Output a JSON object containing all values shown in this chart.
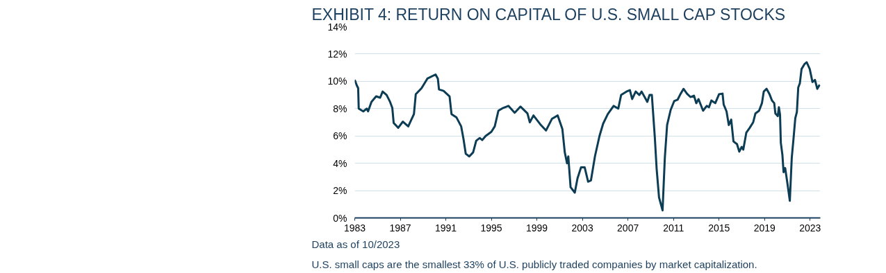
{
  "chart_data": {
    "type": "line",
    "title": "EXHIBIT 4: RETURN ON CAPITAL OF U.S. SMALL CAP STOCKS",
    "annotations": [
      "Data as of 10/2023",
      "U.S. small caps are the smallest 33% of U.S. publicly traded companies by market capitalization."
    ],
    "x": [
      1983.0,
      1983.18,
      1983.3,
      1983.35,
      1983.75,
      1984.06,
      1984.17,
      1984.47,
      1984.88,
      1985.23,
      1985.45,
      1985.8,
      1986.1,
      1986.3,
      1986.42,
      1986.82,
      1987.23,
      1987.7,
      1988.2,
      1988.36,
      1988.87,
      1989.38,
      1990.1,
      1990.3,
      1990.4,
      1990.8,
      1991.33,
      1991.5,
      1991.94,
      1992.35,
      1992.55,
      1992.75,
      1993.06,
      1993.4,
      1993.67,
      1993.98,
      1994.2,
      1994.5,
      1995.0,
      1995.3,
      1995.62,
      1996.03,
      1996.5,
      1997.05,
      1997.56,
      1998.17,
      1998.38,
      1998.7,
      1999.3,
      1999.8,
      2000.32,
      2000.83,
      2001.24,
      2001.45,
      2001.65,
      2001.76,
      2001.96,
      2002.33,
      2002.57,
      2002.88,
      2003.2,
      2003.5,
      2003.75,
      2004.1,
      2004.5,
      2004.82,
      2005.23,
      2005.74,
      2006.15,
      2006.4,
      2006.87,
      2007.17,
      2007.37,
      2007.68,
      2008.0,
      2008.2,
      2008.7,
      2008.9,
      2009.1,
      2009.36,
      2009.52,
      2009.73,
      2010.04,
      2010.24,
      2010.44,
      2010.75,
      2011.06,
      2011.36,
      2011.57,
      2011.88,
      2012.18,
      2012.49,
      2012.8,
      2013.0,
      2013.2,
      2013.6,
      2013.92,
      2014.12,
      2014.33,
      2014.67,
      2015.0,
      2015.31,
      2015.41,
      2015.66,
      2015.86,
      2016.07,
      2016.27,
      2016.58,
      2016.78,
      2016.99,
      2017.13,
      2017.4,
      2017.7,
      2018.0,
      2018.2,
      2018.52,
      2018.77,
      2018.93,
      2019.18,
      2019.44,
      2019.65,
      2019.85,
      2019.95,
      2020.16,
      2020.26,
      2020.36,
      2020.43,
      2020.57,
      2020.67,
      2020.81,
      2020.98,
      2021.22,
      2021.39,
      2021.55,
      2021.7,
      2021.84,
      2021.96,
      2022.1,
      2022.25,
      2022.5,
      2022.7,
      2022.97,
      2023.21,
      2023.43,
      2023.63,
      2023.84
    ],
    "series": [
      {
        "color": "#0d3c55",
        "values": [
          10.1,
          9.7,
          9.5,
          8.0,
          7.8,
          8.0,
          7.8,
          8.5,
          8.9,
          8.8,
          9.25,
          9.0,
          8.5,
          8.05,
          6.95,
          6.6,
          7.05,
          6.7,
          7.6,
          9.05,
          9.5,
          10.2,
          10.5,
          10.2,
          9.4,
          9.3,
          8.9,
          7.6,
          7.35,
          6.7,
          5.8,
          4.7,
          4.5,
          4.8,
          5.65,
          5.85,
          5.7,
          6.0,
          6.3,
          6.7,
          7.85,
          8.05,
          8.2,
          7.7,
          8.15,
          7.65,
          7.0,
          7.5,
          6.85,
          6.4,
          7.25,
          7.5,
          6.5,
          4.8,
          4.0,
          4.5,
          2.25,
          1.85,
          2.9,
          3.7,
          3.7,
          2.65,
          2.75,
          4.5,
          6.0,
          6.9,
          7.6,
          8.2,
          8.0,
          9.0,
          9.25,
          9.35,
          8.7,
          9.25,
          9.0,
          9.25,
          8.5,
          9.0,
          9.0,
          5.9,
          3.6,
          1.5,
          0.55,
          4.4,
          6.8,
          7.9,
          8.55,
          8.65,
          9.0,
          9.45,
          9.1,
          8.85,
          8.95,
          8.4,
          8.7,
          7.85,
          8.2,
          8.1,
          8.6,
          8.4,
          9.05,
          9.1,
          8.3,
          7.8,
          6.8,
          7.2,
          5.6,
          5.4,
          4.85,
          5.2,
          5.0,
          6.25,
          6.6,
          7.0,
          7.65,
          7.85,
          8.4,
          9.25,
          9.45,
          9.05,
          8.6,
          8.4,
          7.65,
          7.45,
          8.1,
          7.55,
          5.5,
          4.6,
          3.35,
          3.65,
          2.7,
          1.25,
          4.4,
          5.85,
          7.3,
          7.75,
          9.55,
          9.85,
          10.9,
          11.25,
          11.4,
          10.9,
          9.95,
          10.1,
          9.45,
          9.75
        ]
      }
    ],
    "xlim": [
      1983,
      2023.9
    ],
    "xticks": [
      1983,
      1987,
      1991,
      1995,
      1999,
      2003,
      2007,
      2011,
      2015,
      2019,
      2023
    ],
    "ylim": [
      0,
      14
    ],
    "yticks": [
      {
        "value": 0,
        "label": "0%"
      },
      {
        "value": 2,
        "label": "2%"
      },
      {
        "value": 4,
        "label": "4%"
      },
      {
        "value": 6,
        "label": "6%"
      },
      {
        "value": 8,
        "label": "8%"
      },
      {
        "value": 10,
        "label": "10%"
      },
      {
        "value": 12,
        "label": "12%"
      },
      {
        "value": 14,
        "label": "14%"
      }
    ],
    "grid": "y",
    "marker": "none",
    "line_style": "solid"
  }
}
